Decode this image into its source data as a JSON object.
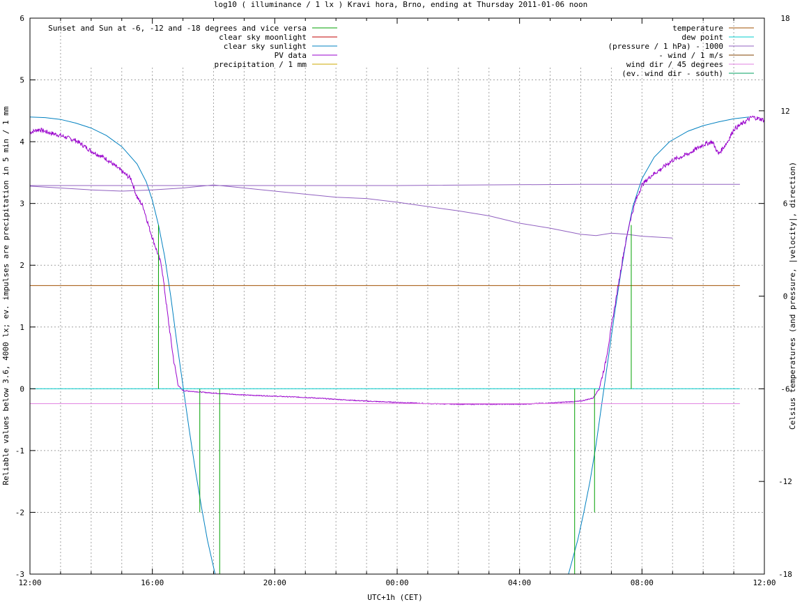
{
  "chart_data": {
    "type": "line",
    "title": "log10 ( illuminance / 1 lx ) Kravi hora, Brno, ending at Thursday 2011-01-06 noon",
    "xlabel": "UTC+1h (CET)",
    "ylabel": "Reliable values below 3.6, 4000 lx; ev. impulses are precipitation in 5 min / 1 mm",
    "y2label": "Celsius temperatures (and pressure, |velocity|, direction)",
    "x_unit": "hours since 12:00 (CET)",
    "xlim": [
      0,
      24
    ],
    "ylim": [
      -3,
      6
    ],
    "y2lim": [
      -18,
      36
    ],
    "grid": true,
    "x_ticks": [
      {
        "v": 0,
        "label": "12:00"
      },
      {
        "v": 4,
        "label": "16:00"
      },
      {
        "v": 8,
        "label": "20:00"
      },
      {
        "v": 12,
        "label": "00:00"
      },
      {
        "v": 16,
        "label": "04:00"
      },
      {
        "v": 20,
        "label": "08:00"
      },
      {
        "v": 24,
        "label": "12:00"
      }
    ],
    "y_ticks": [
      "-3",
      "-2",
      "-1",
      "0",
      "1",
      "2",
      "3",
      "4",
      "5",
      "6"
    ],
    "y2_ticks": [
      "-18",
      "-12",
      "-6",
      "0",
      "6",
      "12",
      "18",
      "24",
      "30",
      "36"
    ],
    "legend_left": [
      {
        "name": "Sunset and Sun at -6, -12 and -18 degrees and vice versa",
        "color": "#00a000"
      },
      {
        "name": "clear sky moonlight",
        "color": "#c00000"
      },
      {
        "name": "clear sky sunlight",
        "color": "#0080c0"
      },
      {
        "name": "PV data",
        "color": "#9900cc"
      },
      {
        "name": "precipitation / 1 mm",
        "color": "#ccaa00"
      }
    ],
    "legend_right": [
      {
        "name": "temperature",
        "color": "#a05000"
      },
      {
        "name": "dew point",
        "color": "#00cccc"
      },
      {
        "name": "(pressure / 1 hPa) - 1000",
        "color": "#9060c0"
      },
      {
        "name": "- wind / 1 m/s",
        "color": "#804000"
      },
      {
        "name": "wind dir / 45 degrees",
        "color": "#e080e0"
      },
      {
        "name": "(ev. wind dir - south)",
        "color": "#00a060"
      }
    ],
    "series": [
      {
        "name": "clear sky sunlight",
        "color": "#0080c0",
        "points": [
          [
            0,
            4.4
          ],
          [
            0.5,
            4.39
          ],
          [
            1,
            4.36
          ],
          [
            1.5,
            4.3
          ],
          [
            2,
            4.22
          ],
          [
            2.5,
            4.1
          ],
          [
            3,
            3.92
          ],
          [
            3.5,
            3.64
          ],
          [
            3.8,
            3.35
          ],
          [
            4,
            3.05
          ],
          [
            4.2,
            2.65
          ],
          [
            4.4,
            2.15
          ],
          [
            4.6,
            1.5
          ],
          [
            4.8,
            0.75
          ],
          [
            5,
            0.05
          ],
          [
            5.2,
            -0.65
          ],
          [
            5.4,
            -1.3
          ],
          [
            5.6,
            -1.9
          ],
          [
            5.8,
            -2.45
          ],
          [
            6.05,
            -3
          ]
        ]
      },
      {
        "name": "clear sky sunlight (morning)",
        "color": "#0080c0",
        "points": [
          [
            17.6,
            -3
          ],
          [
            17.9,
            -2.45
          ],
          [
            18.1,
            -2.0
          ],
          [
            18.3,
            -1.5
          ],
          [
            18.5,
            -0.9
          ],
          [
            18.7,
            -0.2
          ],
          [
            18.9,
            0.5
          ],
          [
            19.1,
            1.2
          ],
          [
            19.3,
            1.85
          ],
          [
            19.5,
            2.45
          ],
          [
            19.7,
            2.95
          ],
          [
            20,
            3.4
          ],
          [
            20.4,
            3.75
          ],
          [
            20.9,
            4.0
          ],
          [
            21.5,
            4.17
          ],
          [
            22,
            4.26
          ],
          [
            22.5,
            4.32
          ],
          [
            23,
            4.37
          ],
          [
            23.5,
            4.4
          ]
        ]
      },
      {
        "name": "PV data",
        "color": "#9900cc",
        "noise": 0.035,
        "points": [
          [
            0,
            4.15
          ],
          [
            0.3,
            4.2
          ],
          [
            0.6,
            4.15
          ],
          [
            1,
            4.1
          ],
          [
            1.5,
            4.02
          ],
          [
            2,
            3.85
          ],
          [
            2.5,
            3.72
          ],
          [
            3,
            3.52
          ],
          [
            3.3,
            3.4
          ],
          [
            3.5,
            3.1
          ],
          [
            3.7,
            2.95
          ],
          [
            3.9,
            2.6
          ],
          [
            4.1,
            2.3
          ],
          [
            4.3,
            2.0
          ],
          [
            4.4,
            1.6
          ],
          [
            4.55,
            1.0
          ],
          [
            4.7,
            0.45
          ],
          [
            4.85,
            0.05
          ],
          [
            5,
            -0.03
          ],
          [
            5.5,
            -0.05
          ],
          [
            6,
            -0.07
          ],
          [
            7,
            -0.1
          ],
          [
            8,
            -0.12
          ],
          [
            9,
            -0.14
          ],
          [
            10,
            -0.17
          ],
          [
            11,
            -0.2
          ],
          [
            12,
            -0.22
          ],
          [
            13,
            -0.24
          ],
          [
            14,
            -0.25
          ],
          [
            15,
            -0.25
          ],
          [
            16,
            -0.25
          ],
          [
            17,
            -0.23
          ],
          [
            18,
            -0.2
          ],
          [
            18.4,
            -0.15
          ],
          [
            18.6,
            0
          ],
          [
            18.8,
            0.4
          ],
          [
            19,
            1.0
          ],
          [
            19.2,
            1.6
          ],
          [
            19.4,
            2.2
          ],
          [
            19.6,
            2.7
          ],
          [
            19.8,
            3.05
          ],
          [
            20,
            3.3
          ],
          [
            20.3,
            3.45
          ],
          [
            20.6,
            3.55
          ],
          [
            21,
            3.7
          ],
          [
            21.5,
            3.8
          ],
          [
            22,
            3.95
          ],
          [
            22.3,
            4.0
          ],
          [
            22.5,
            3.8
          ],
          [
            22.8,
            4.0
          ],
          [
            23,
            4.2
          ],
          [
            23.3,
            4.3
          ],
          [
            23.6,
            4.4
          ],
          [
            24,
            4.35
          ]
        ]
      },
      {
        "name": "(pressure / 1 hPa) - 1000",
        "color": "#9060c0",
        "points": [
          [
            0,
            3.28
          ],
          [
            1,
            3.25
          ],
          [
            2,
            3.22
          ],
          [
            3,
            3.2
          ],
          [
            4,
            3.22
          ],
          [
            5,
            3.25
          ],
          [
            6,
            3.3
          ],
          [
            7,
            3.25
          ],
          [
            8,
            3.2
          ],
          [
            9,
            3.15
          ],
          [
            10,
            3.1
          ],
          [
            11,
            3.08
          ],
          [
            12,
            3.02
          ],
          [
            13,
            2.95
          ],
          [
            14,
            2.88
          ],
          [
            15,
            2.8
          ],
          [
            16,
            2.68
          ],
          [
            17,
            2.6
          ],
          [
            17.5,
            2.55
          ],
          [
            18,
            2.5
          ],
          [
            18.5,
            2.48
          ],
          [
            19,
            2.52
          ],
          [
            19.5,
            2.5
          ],
          [
            20,
            2.47
          ],
          [
            21,
            2.44
          ]
        ]
      },
      {
        "name": "(pressure flat)",
        "color": "#9060c0",
        "points": [
          [
            0,
            3.29
          ],
          [
            12,
            3.29
          ],
          [
            18,
            3.31
          ],
          [
            23.2,
            3.31
          ]
        ]
      },
      {
        "name": "- wind / 1 m/s",
        "color": "#a05000",
        "points": [
          [
            0,
            1.67
          ],
          [
            23.2,
            1.67
          ]
        ]
      },
      {
        "name": "dew point",
        "color": "#00cccc",
        "points": [
          [
            0,
            0
          ],
          [
            23.2,
            0
          ]
        ]
      },
      {
        "name": "wind dir / 45 degrees",
        "color": "#e080e0",
        "points": [
          [
            0,
            -0.24
          ],
          [
            23.2,
            -0.24
          ]
        ]
      }
    ],
    "impulses": {
      "name": "Sunset and Sun at -6, -12 and -18 degrees and vice versa",
      "color": "#00a000",
      "items": [
        [
          4.2,
          2.65
        ],
        [
          4.85,
          0
        ],
        [
          5.55,
          -2
        ],
        [
          6.2,
          -3
        ],
        [
          17.8,
          -3
        ],
        [
          18.45,
          -2
        ],
        [
          19.05,
          0
        ],
        [
          19.65,
          2.65
        ]
      ]
    }
  }
}
